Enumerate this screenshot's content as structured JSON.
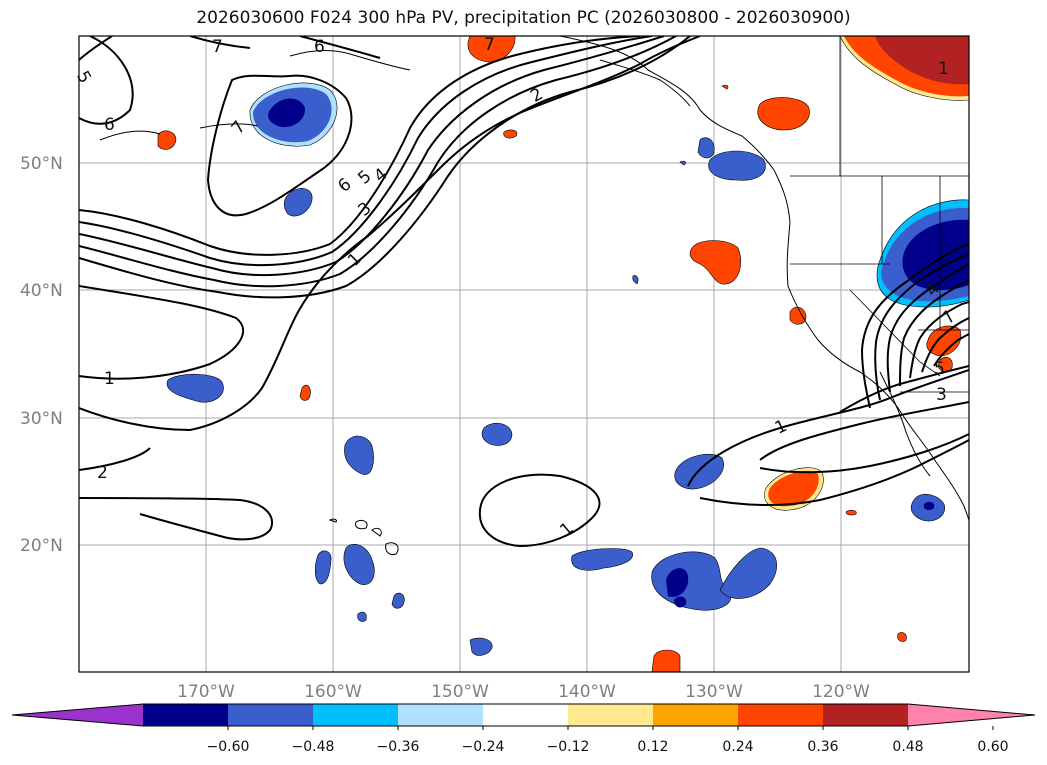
{
  "title": "2026030600 F024 300 hPa PV, precipitation PC (2026030800 - 2026030900)",
  "map": {
    "lat_labels": [
      "50°N",
      "40°N",
      "30°N",
      "20°N"
    ],
    "lon_labels": [
      "170°W",
      "160°W",
      "150°W",
      "140°W",
      "130°W",
      "120°W"
    ]
  },
  "contour_labels": [
    "7",
    "6",
    "5",
    "6",
    "7",
    "7",
    "6",
    "5",
    "4",
    "3",
    "2",
    "1",
    "1",
    "2",
    "1",
    "1",
    "3",
    "5",
    "7",
    "4",
    "1"
  ],
  "colorbar": {
    "ticks": [
      "−0.60",
      "−0.48",
      "−0.36",
      "−0.24",
      "−0.12",
      "0.12",
      "0.24",
      "0.36",
      "0.48",
      "0.60"
    ],
    "colors": [
      "#9a32cd",
      "#00008b",
      "#3a5fcd",
      "#00bfff",
      "#b0e2ff",
      "#ffffff",
      "#fee98f",
      "#ffa500",
      "#ff4500",
      "#b22222",
      "#ff82ab"
    ]
  },
  "chart_data": {
    "type": "map",
    "title": "2026030600 F024 300 hPa PV, precipitation PC (2026030800 - 2026030900)",
    "field_contours": "300 hPa PV (PVU), levels 1–7",
    "shading": "precipitation PC, bins from -0.60 to 0.60 step 0.12",
    "lon_range": [
      -180,
      -110
    ],
    "lat_range": [
      10,
      60
    ],
    "colorbar_ticks": [
      -0.6,
      -0.48,
      -0.36,
      -0.24,
      -0.12,
      0.12,
      0.24,
      0.36,
      0.48,
      0.6
    ]
  }
}
